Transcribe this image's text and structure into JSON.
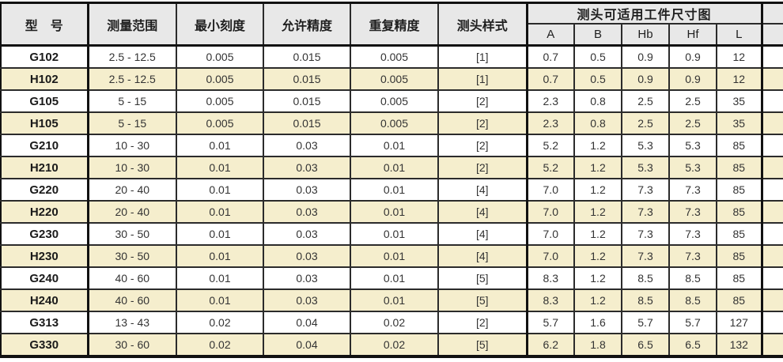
{
  "table": {
    "title_semantic": "gauge-model-specifications",
    "header": {
      "model": "型　号",
      "range": "测量范围",
      "min_scale": "最小刻度",
      "accuracy": "允许精度",
      "repeat": "重复精度",
      "probe_style": "测头样式",
      "dim_group": "测头可适用工件尺寸图",
      "sub": [
        "A",
        "B",
        "Hb",
        "Hf",
        "L"
      ]
    },
    "rows": [
      {
        "model": "G102",
        "range": "2.5 - 12.5",
        "min_scale": "0.005",
        "accuracy": "0.015",
        "repeat": "0.005",
        "probe_style": "[1]",
        "A": "0.7",
        "B": "0.5",
        "Hb": "0.9",
        "Hf": "0.9",
        "L": "12"
      },
      {
        "model": "H102",
        "range": "2.5 - 12.5",
        "min_scale": "0.005",
        "accuracy": "0.015",
        "repeat": "0.005",
        "probe_style": "[1]",
        "A": "0.7",
        "B": "0.5",
        "Hb": "0.9",
        "Hf": "0.9",
        "L": "12"
      },
      {
        "model": "G105",
        "range": "5 - 15",
        "min_scale": "0.005",
        "accuracy": "0.015",
        "repeat": "0.005",
        "probe_style": "[2]",
        "A": "2.3",
        "B": "0.8",
        "Hb": "2.5",
        "Hf": "2.5",
        "L": "35"
      },
      {
        "model": "H105",
        "range": "5 - 15",
        "min_scale": "0.005",
        "accuracy": "0.015",
        "repeat": "0.005",
        "probe_style": "[2]",
        "A": "2.3",
        "B": "0.8",
        "Hb": "2.5",
        "Hf": "2.5",
        "L": "35"
      },
      {
        "model": "G210",
        "range": "10 - 30",
        "min_scale": "0.01",
        "accuracy": "0.03",
        "repeat": "0.01",
        "probe_style": "[2]",
        "A": "5.2",
        "B": "1.2",
        "Hb": "5.3",
        "Hf": "5.3",
        "L": "85"
      },
      {
        "model": "H210",
        "range": "10 - 30",
        "min_scale": "0.01",
        "accuracy": "0.03",
        "repeat": "0.01",
        "probe_style": "[2]",
        "A": "5.2",
        "B": "1.2",
        "Hb": "5.3",
        "Hf": "5.3",
        "L": "85"
      },
      {
        "model": "G220",
        "range": "20 - 40",
        "min_scale": "0.01",
        "accuracy": "0.03",
        "repeat": "0.01",
        "probe_style": "[4]",
        "A": "7.0",
        "B": "1.2",
        "Hb": "7.3",
        "Hf": "7.3",
        "L": "85"
      },
      {
        "model": "H220",
        "range": "20 - 40",
        "min_scale": "0.01",
        "accuracy": "0.03",
        "repeat": "0.01",
        "probe_style": "[4]",
        "A": "7.0",
        "B": "1.2",
        "Hb": "7.3",
        "Hf": "7.3",
        "L": "85"
      },
      {
        "model": "G230",
        "range": "30 - 50",
        "min_scale": "0.01",
        "accuracy": "0.03",
        "repeat": "0.01",
        "probe_style": "[4]",
        "A": "7.0",
        "B": "1.2",
        "Hb": "7.3",
        "Hf": "7.3",
        "L": "85"
      },
      {
        "model": "H230",
        "range": "30 - 50",
        "min_scale": "0.01",
        "accuracy": "0.03",
        "repeat": "0.01",
        "probe_style": "[4]",
        "A": "7.0",
        "B": "1.2",
        "Hb": "7.3",
        "Hf": "7.3",
        "L": "85"
      },
      {
        "model": "G240",
        "range": "40 - 60",
        "min_scale": "0.01",
        "accuracy": "0.03",
        "repeat": "0.01",
        "probe_style": "[5]",
        "A": "8.3",
        "B": "1.2",
        "Hb": "8.5",
        "Hf": "8.5",
        "L": "85"
      },
      {
        "model": "H240",
        "range": "40 - 60",
        "min_scale": "0.01",
        "accuracy": "0.03",
        "repeat": "0.01",
        "probe_style": "[5]",
        "A": "8.3",
        "B": "1.2",
        "Hb": "8.5",
        "Hf": "8.5",
        "L": "85"
      },
      {
        "model": "G313",
        "range": "13 - 43",
        "min_scale": "0.02",
        "accuracy": "0.04",
        "repeat": "0.02",
        "probe_style": "[2]",
        "A": "5.7",
        "B": "1.6",
        "Hb": "5.7",
        "Hf": "5.7",
        "L": "127"
      },
      {
        "model": "G330",
        "range": "30 - 60",
        "min_scale": "0.02",
        "accuracy": "0.04",
        "repeat": "0.02",
        "probe_style": "[5]",
        "A": "6.2",
        "B": "1.8",
        "Hb": "6.5",
        "Hf": "6.5",
        "L": "132"
      }
    ],
    "colors": {
      "row_alt_bg": "#f5eecd",
      "header_bg": "#e8e8e8",
      "border_thin": "#2b2b2b",
      "border_thick": "#111111"
    }
  }
}
